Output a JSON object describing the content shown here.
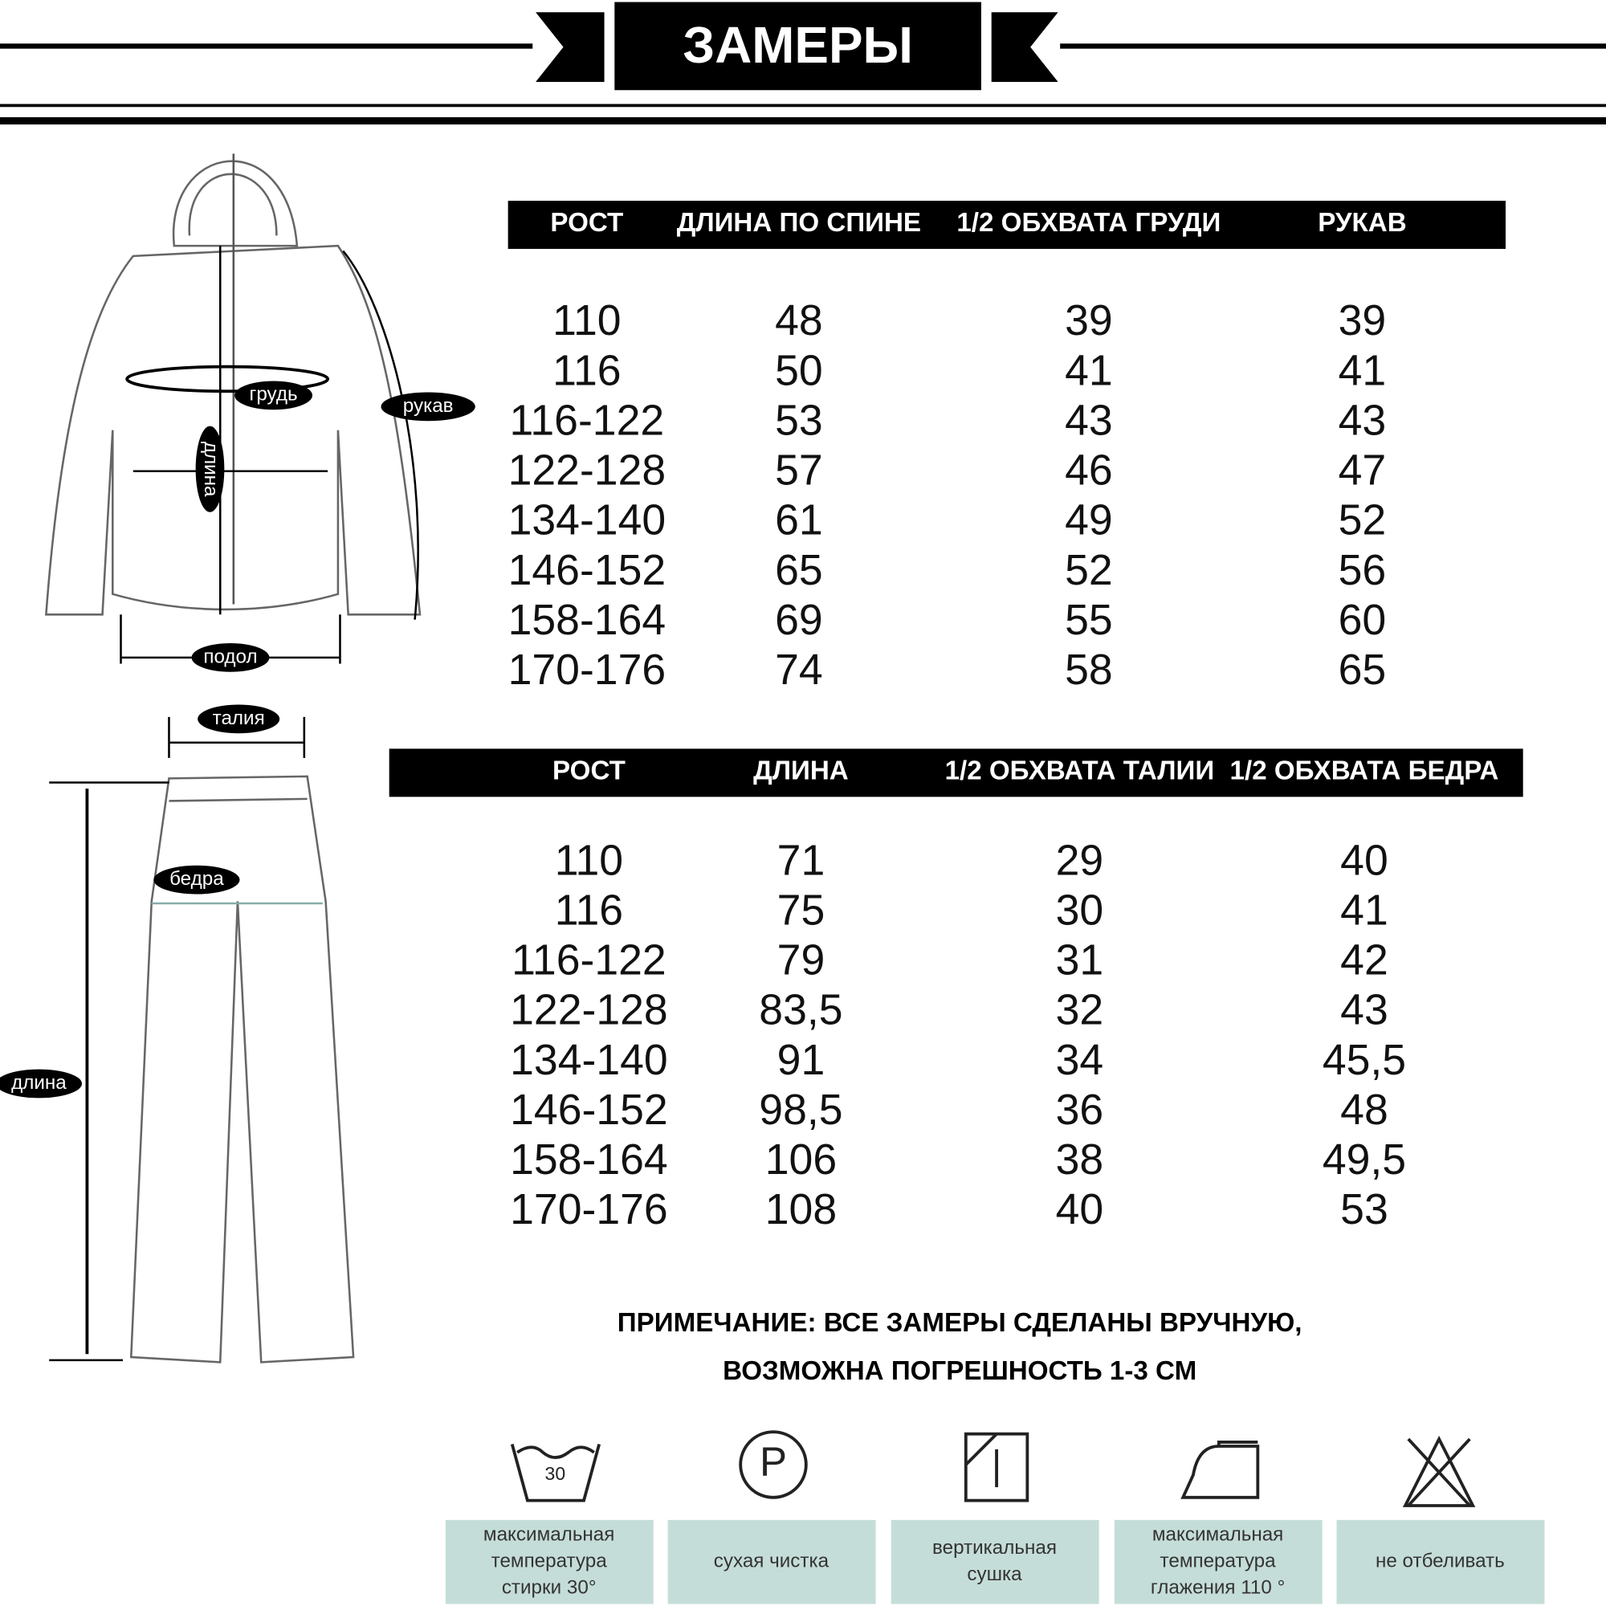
{
  "header": {
    "title": "ЗАМЕРЫ"
  },
  "jacket_table": {
    "columns": [
      "РОСТ",
      "ДЛИНА ПО СПИНЕ",
      "1/2 ОБХВАТА ГРУДИ",
      "РУКАВ"
    ],
    "rows": [
      [
        "110",
        "48",
        "39",
        "39"
      ],
      [
        "116",
        "50",
        "41",
        "41"
      ],
      [
        "116-122",
        "53",
        "43",
        "43"
      ],
      [
        "122-128",
        "57",
        "46",
        "47"
      ],
      [
        "134-140",
        "61",
        "49",
        "52"
      ],
      [
        "146-152",
        "65",
        "52",
        "56"
      ],
      [
        "158-164",
        "69",
        "55",
        "60"
      ],
      [
        "170-176",
        "74",
        "58",
        "65"
      ]
    ]
  },
  "pants_table": {
    "columns": [
      "РОСТ",
      "ДЛИНА",
      "1/2 ОБХВАТА ТАЛИИ",
      "1/2 ОБХВАТА БЕДРА"
    ],
    "rows": [
      [
        "110",
        "71",
        "29",
        "40"
      ],
      [
        "116",
        "75",
        "30",
        "41"
      ],
      [
        "116-122",
        "79",
        "31",
        "42"
      ],
      [
        "122-128",
        "83,5",
        "32",
        "43"
      ],
      [
        "134-140",
        "91",
        "34",
        "45,5"
      ],
      [
        "146-152",
        "98,5",
        "36",
        "48"
      ],
      [
        "158-164",
        "106",
        "38",
        "49,5"
      ],
      [
        "170-176",
        "108",
        "40",
        "53"
      ]
    ]
  },
  "jacket_labels": {
    "chest": "грудь",
    "sleeve": "рукав",
    "length": "длина",
    "hem": "подол"
  },
  "pants_labels": {
    "waist": "талия",
    "hips": "бедра",
    "length": "длина"
  },
  "note": [
    "ПРИМЕЧАНИЕ: ВСЕ ЗАМЕРЫ СДЕЛАНЫ ВРУЧНУЮ,",
    "ВОЗМОЖНА ПОГРЕШНОСТЬ 1-3 СМ"
  ],
  "care": [
    {
      "icon_text": "30",
      "label": [
        "максимальная",
        "температура",
        "стирки 30°"
      ]
    },
    {
      "icon_text": "P",
      "label": [
        "сухая чистка"
      ]
    },
    {
      "label": [
        "вертикальная",
        "сушка"
      ]
    },
    {
      "label": [
        "максимальная",
        "температура",
        "глажения 110 °"
      ]
    },
    {
      "label": [
        "не отбеливать"
      ]
    }
  ]
}
